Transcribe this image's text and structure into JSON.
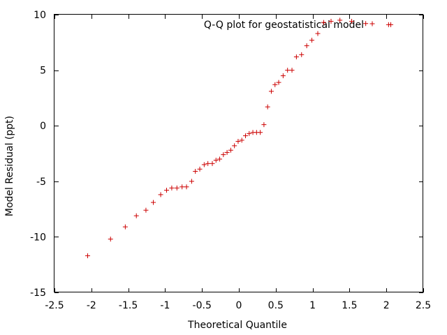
{
  "chart_data": {
    "type": "scatter",
    "title": "",
    "xlabel": "Theoretical Quantile",
    "ylabel": "Model Residual (ppt)",
    "xlim": [
      -2.5,
      2.5
    ],
    "ylim": [
      -15,
      10
    ],
    "xticks": [
      "-2.5",
      "-2",
      "-1.5",
      "-1",
      "-0.5",
      "0",
      "0.5",
      "1",
      "1.5",
      "2",
      "2.5"
    ],
    "yticks": [
      "-15",
      "-10",
      "-5",
      "0",
      "5",
      "10"
    ],
    "grid": false,
    "legend_position": "top-right",
    "series": [
      {
        "name": "Q-Q plot for geostatistical model",
        "color": "#cc0000",
        "marker": "plus",
        "x": [
          -2.05,
          -1.74,
          -1.54,
          -1.39,
          -1.26,
          -1.16,
          -1.06,
          -0.98,
          -0.91,
          -0.84,
          -0.77,
          -0.71,
          -0.64,
          -0.59,
          -0.53,
          -0.47,
          -0.42,
          -0.36,
          -0.31,
          -0.26,
          -0.21,
          -0.16,
          -0.11,
          -0.06,
          -0.01,
          0.04,
          0.09,
          0.14,
          0.19,
          0.24,
          0.29,
          0.34,
          0.39,
          0.44,
          0.49,
          0.54,
          0.6,
          0.66,
          0.72,
          0.78,
          0.85,
          0.92,
          0.99,
          1.07,
          1.15,
          1.25,
          1.37,
          1.53,
          1.72,
          2.03,
          2.06
        ],
        "y": [
          -11.7,
          -10.2,
          -9.1,
          -8.1,
          -7.6,
          -6.9,
          -6.2,
          -5.8,
          -5.6,
          -5.6,
          -5.5,
          -5.5,
          -5.0,
          -4.1,
          -3.9,
          -3.5,
          -3.4,
          -3.4,
          -3.1,
          -3.0,
          -2.6,
          -2.4,
          -2.2,
          -1.8,
          -1.4,
          -1.3,
          -0.9,
          -0.7,
          -0.6,
          -0.6,
          -0.6,
          0.1,
          1.7,
          3.1,
          3.7,
          3.9,
          4.5,
          5.0,
          5.0,
          6.2,
          6.4,
          7.2,
          7.7,
          8.3,
          9.3,
          9.4,
          9.5,
          9.4,
          9.2,
          9.1,
          9.1
        ]
      }
    ]
  }
}
